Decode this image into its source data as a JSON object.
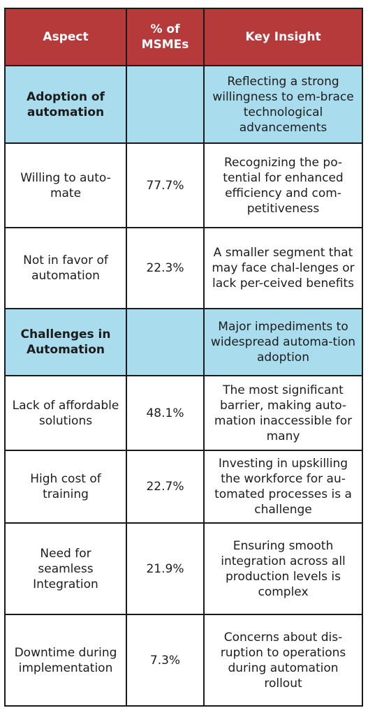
{
  "header": {
    "aspect": "Aspect",
    "pct": "% of MSMEs",
    "insight": "Key Insight"
  },
  "rows": [
    {
      "type": "section",
      "aspect": "Adoption of automation",
      "pct": "",
      "insight": "Reflecting a strong willingness to em-brace technological advancements"
    },
    {
      "type": "item",
      "aspect": "Willing to auto-mate",
      "pct": "77.7%",
      "insight": "Recognizing the po-tential for enhanced efficiency and com-petitiveness"
    },
    {
      "type": "item",
      "aspect": "Not in favor of automation",
      "pct": "22.3%",
      "insight": "A smaller segment that may face chal-lenges or lack per-ceived benefits"
    },
    {
      "type": "section",
      "aspect": "Challenges in Automation",
      "pct": "",
      "insight": "Major impediments to widespread automa-tion adoption"
    },
    {
      "type": "item",
      "aspect": "Lack of affordable solutions",
      "pct": "48.1%",
      "insight": "The most significant barrier, making auto-mation inaccessible for many"
    },
    {
      "type": "item",
      "aspect": "High cost of training",
      "pct": "22.7%",
      "insight": "Investing in upskilling the workforce for au-tomated processes is a challenge"
    },
    {
      "type": "item",
      "aspect": "Need for seamless Integration",
      "pct": "21.9%",
      "insight": "Ensuring smooth integration across all production levels is complex"
    },
    {
      "type": "item",
      "aspect": "Downtime during implementation",
      "pct": "7.3%",
      "insight": "Concerns about dis-ruption to operations during automation rollout"
    }
  ]
}
